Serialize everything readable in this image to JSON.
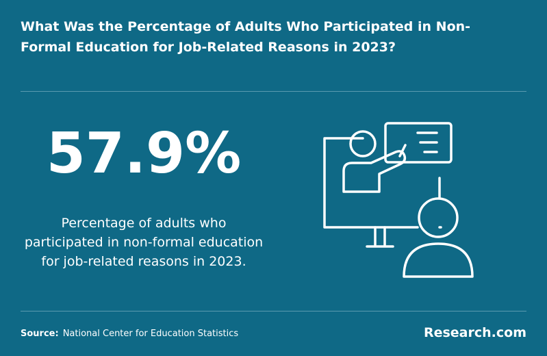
{
  "header": {
    "title": "What Was the Percentage of Adults Who Participated in Non-Formal Education for Job-Related Reasons in 2023?"
  },
  "stat": {
    "value": "57.9%",
    "description": "Percentage of adults who participated in non-formal education for job-related reasons in 2023."
  },
  "footer": {
    "source_label": "Source:",
    "source": "National Center for Education Statistics",
    "brand": "Research.com"
  }
}
